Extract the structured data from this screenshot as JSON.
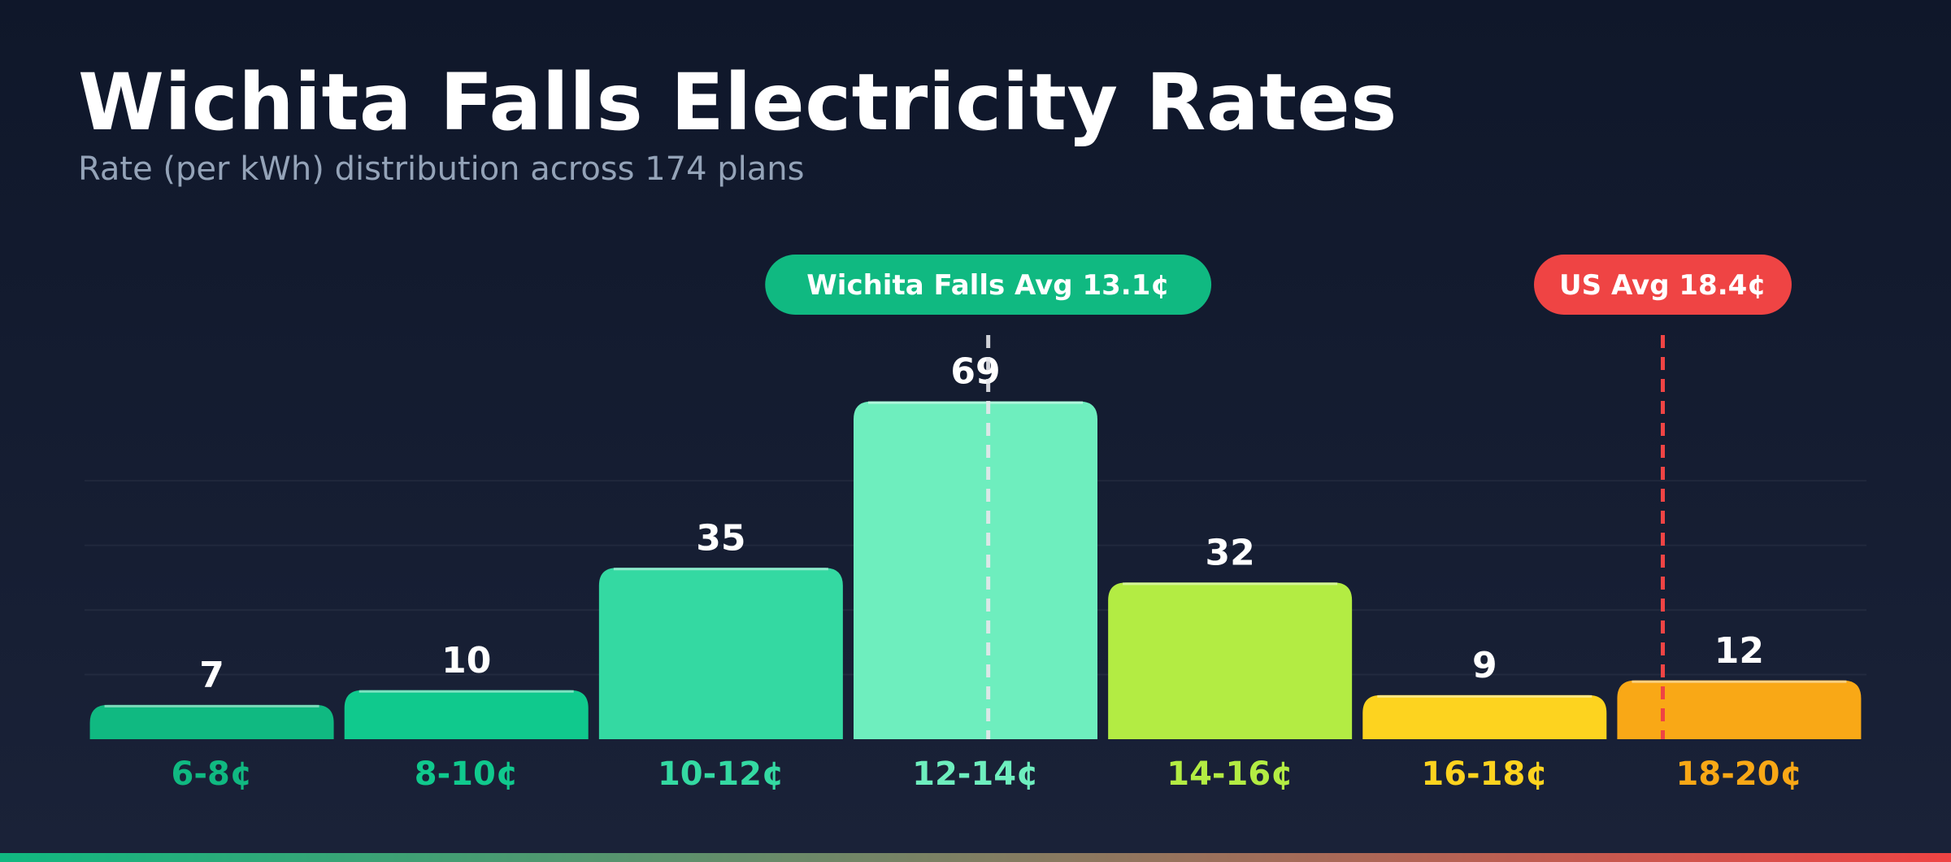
{
  "header": {
    "title": "Wichita Falls Electricity Rates",
    "subtitle": "Rate (per kWh) distribution across 174 plans"
  },
  "chart_data": {
    "type": "bar",
    "categories": [
      "6-8¢",
      "8-10¢",
      "10-12¢",
      "12-14¢",
      "14-16¢",
      "16-18¢",
      "18-20¢"
    ],
    "values": [
      7,
      10,
      35,
      69,
      32,
      9,
      12
    ],
    "bar_colors": [
      "#10b981",
      "#10c98d",
      "#34d9a2",
      "#6eeebe",
      "#b3ec43",
      "#fdd31f",
      "#f9a816"
    ],
    "label_colors": [
      "#10b981",
      "#10c98d",
      "#34d9a2",
      "#6eeebe",
      "#b3ec43",
      "#fdd31f",
      "#f9a816"
    ],
    "x_range": [
      6,
      20
    ],
    "y_range": [
      0,
      70
    ],
    "reference_lines": [
      {
        "label": "Wichita Falls Avg 13.1¢",
        "value": 13.1,
        "color": "#10b981",
        "line_color": "#e5e7eb"
      },
      {
        "label": "US Avg 18.4¢",
        "value": 18.4,
        "color": "#ef4444",
        "line_color": "#ef4444"
      }
    ],
    "grid": true
  },
  "bottom_bar": {
    "colors": [
      "#10b981",
      "#ef4444"
    ]
  }
}
